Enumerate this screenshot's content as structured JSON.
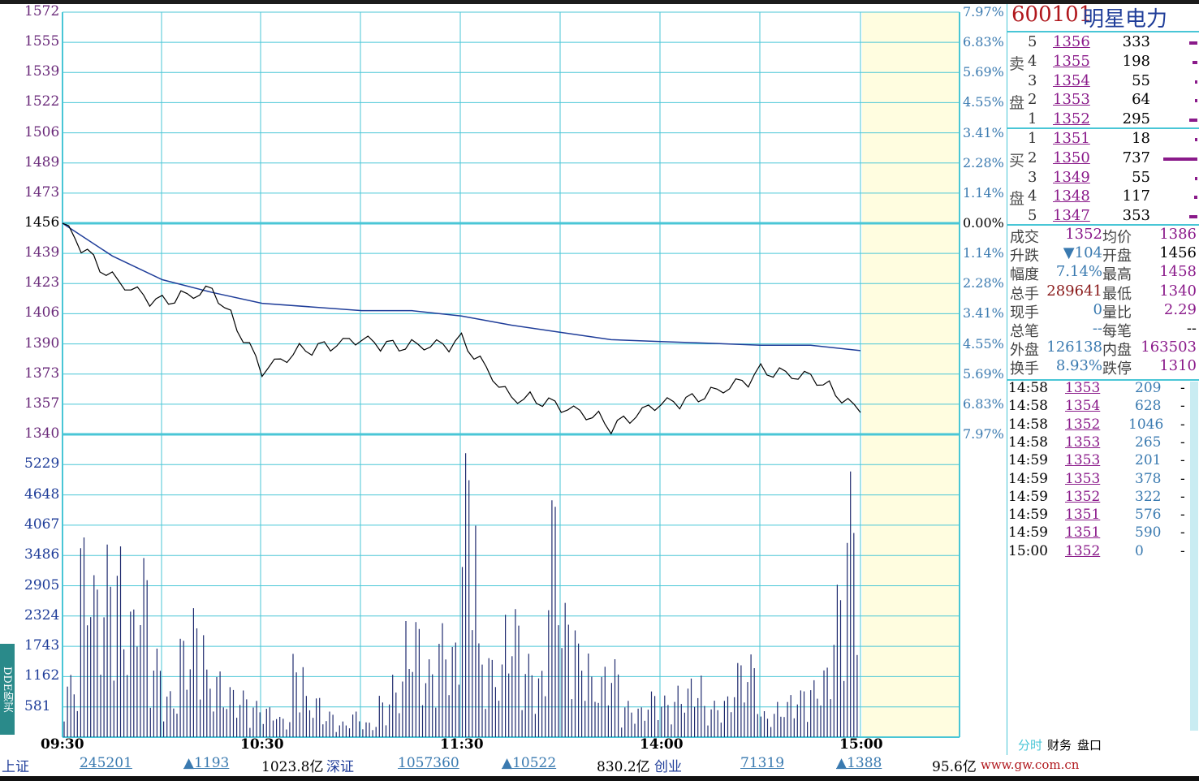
{
  "stock": {
    "code": "600101",
    "name": "明星电力"
  },
  "price_axis": [
    "1572",
    "1555",
    "1539",
    "1522",
    "1506",
    "1489",
    "1473",
    "1456",
    "1439",
    "1423",
    "1406",
    "1390",
    "1373",
    "1357",
    "1340"
  ],
  "pct_axis": [
    "7.97%",
    "6.83%",
    "5.69%",
    "4.55%",
    "3.41%",
    "2.28%",
    "1.14%",
    "0.00%",
    "1.14%",
    "2.28%",
    "3.41%",
    "4.55%",
    "5.69%",
    "6.83%",
    "7.97%"
  ],
  "volume_axis": [
    "5229",
    "4648",
    "4067",
    "3486",
    "2905",
    "2324",
    "1743",
    "1162",
    "581"
  ],
  "time_axis": [
    "09:30",
    "10:30",
    "11:30",
    "14:00",
    "15:00"
  ],
  "orderbook": {
    "sell_label": [
      "卖",
      "盘"
    ],
    "buy_label": [
      "买",
      "盘"
    ],
    "sell": [
      {
        "level": "5",
        "price": "1356",
        "vol": "333",
        "bar": 0.05
      },
      {
        "level": "4",
        "price": "1355",
        "vol": "198",
        "bar": 0.03
      },
      {
        "level": "3",
        "price": "1354",
        "vol": "55",
        "bar": 0.01
      },
      {
        "level": "2",
        "price": "1353",
        "vol": "64",
        "bar": 0.01
      },
      {
        "level": "1",
        "price": "1352",
        "vol": "295",
        "bar": 0.05
      }
    ],
    "buy": [
      {
        "level": "1",
        "price": "1351",
        "vol": "18",
        "bar": 0.01
      },
      {
        "level": "2",
        "price": "1350",
        "vol": "737",
        "bar": 0.2
      },
      {
        "level": "3",
        "price": "1349",
        "vol": "55",
        "bar": 0.01
      },
      {
        "level": "4",
        "price": "1348",
        "vol": "117",
        "bar": 0.02
      },
      {
        "level": "5",
        "price": "1347",
        "vol": "353",
        "bar": 0.05
      }
    ]
  },
  "stats": [
    {
      "k1": "成交",
      "v1": "1352",
      "k2": "均价",
      "v2": "1386"
    },
    {
      "k1": "升跌",
      "v1": "▼104",
      "k2": "开盘",
      "v2": "1456"
    },
    {
      "k1": "幅度",
      "v1": "7.14%",
      "k2": "最高",
      "v2": "1458"
    },
    {
      "k1": "总手",
      "v1": "289641",
      "k2": "最低",
      "v2": "1340"
    },
    {
      "k1": "现手",
      "v1": "0",
      "k2": "量比",
      "v2": "2.29"
    },
    {
      "k1": "总笔",
      "v1": "--",
      "k2": "每笔",
      "v2": "--"
    },
    {
      "k1": "外盘",
      "v1": "126138",
      "k2": "内盘",
      "v2": "163503"
    },
    {
      "k1": "换手",
      "v1": "8.93%",
      "k2": "跌停",
      "v2": "1310"
    }
  ],
  "ticks": [
    {
      "time": "14:58",
      "price": "1353",
      "vol": "209",
      "flag": "-"
    },
    {
      "time": "14:58",
      "price": "1354",
      "vol": "628",
      "flag": "-"
    },
    {
      "time": "14:58",
      "price": "1352",
      "vol": "1046",
      "flag": "-"
    },
    {
      "time": "14:58",
      "price": "1353",
      "vol": "265",
      "flag": "-"
    },
    {
      "time": "14:59",
      "price": "1353",
      "vol": "201",
      "flag": "-"
    },
    {
      "time": "14:59",
      "price": "1353",
      "vol": "378",
      "flag": "-"
    },
    {
      "time": "14:59",
      "price": "1352",
      "vol": "322",
      "flag": "-"
    },
    {
      "time": "14:59",
      "price": "1351",
      "vol": "576",
      "flag": "-"
    },
    {
      "time": "14:59",
      "price": "1351",
      "vol": "590",
      "flag": "-"
    },
    {
      "time": "15:00",
      "price": "1352",
      "vol": "0",
      "flag": "-"
    }
  ],
  "tabs": [
    "分时",
    "财务",
    "盘口"
  ],
  "dde_label": "DDE购买",
  "bottom": {
    "sh_label": "上证",
    "sh_vol": "245201",
    "sh_chg": "▲1193",
    "sh_amt": "1023.8亿",
    "sz_label": "深证",
    "sz_vol": "1057360",
    "sz_chg": "▲10522",
    "sz_amt": "830.2亿",
    "cy_label": "创业",
    "cy_vol": "71319",
    "cy_chg": "▲1388",
    "cy_amt": "95.6亿",
    "site": "www.gw.com.cn"
  },
  "colors": {
    "grid": "#49c6d6",
    "price_line": "#000000",
    "avg_line": "#1f3d99",
    "volume": "#1f2a6e",
    "axis_text": "#6a2a7a",
    "up_tick": "#8a1a8a"
  },
  "chart_data": {
    "type": "line",
    "title": "",
    "xlabel": "",
    "ylabel": "",
    "prev_close": 1456,
    "ylim": [
      1340,
      1572
    ],
    "x": [
      "09:30",
      "09:45",
      "10:00",
      "10:15",
      "10:30",
      "10:45",
      "11:00",
      "11:15",
      "11:30",
      "13:15",
      "13:30",
      "13:45",
      "14:00",
      "14:15",
      "14:30",
      "14:45",
      "15:00"
    ],
    "series": [
      {
        "values": [
          1456,
          1425,
          1412,
          1420,
          1376,
          1388,
          1392,
          1388,
          1391,
          1360,
          1356,
          1345,
          1357,
          1362,
          1374,
          1372,
          1352
        ]
      },
      {
        "values": [
          1456,
          1438,
          1425,
          1418,
          1412,
          1410,
          1408,
          1408,
          1405,
          1400,
          1396,
          1392,
          1391,
          1390,
          1389,
          1389,
          1386
        ]
      }
    ],
    "volume": {
      "ylim": [
        0,
        5810
      ],
      "values": [
        1200,
        4000,
        3200,
        3700,
        2600,
        3500,
        1700,
        900,
        2000,
        2500,
        1300,
        1000,
        900,
        700,
        600,
        400,
        1600,
        800,
        500,
        300,
        500,
        300,
        800,
        1200,
        2300,
        1500,
        2200,
        1900,
        5600,
        1800,
        1500,
        2500,
        1600,
        1300,
        4800,
        2600,
        1800,
        1200,
        1500,
        700,
        600,
        900,
        800,
        1000,
        1200,
        700,
        800,
        1500,
        1600,
        500,
        700,
        900,
        1100,
        1400,
        3000,
        5100
      ]
    }
  }
}
